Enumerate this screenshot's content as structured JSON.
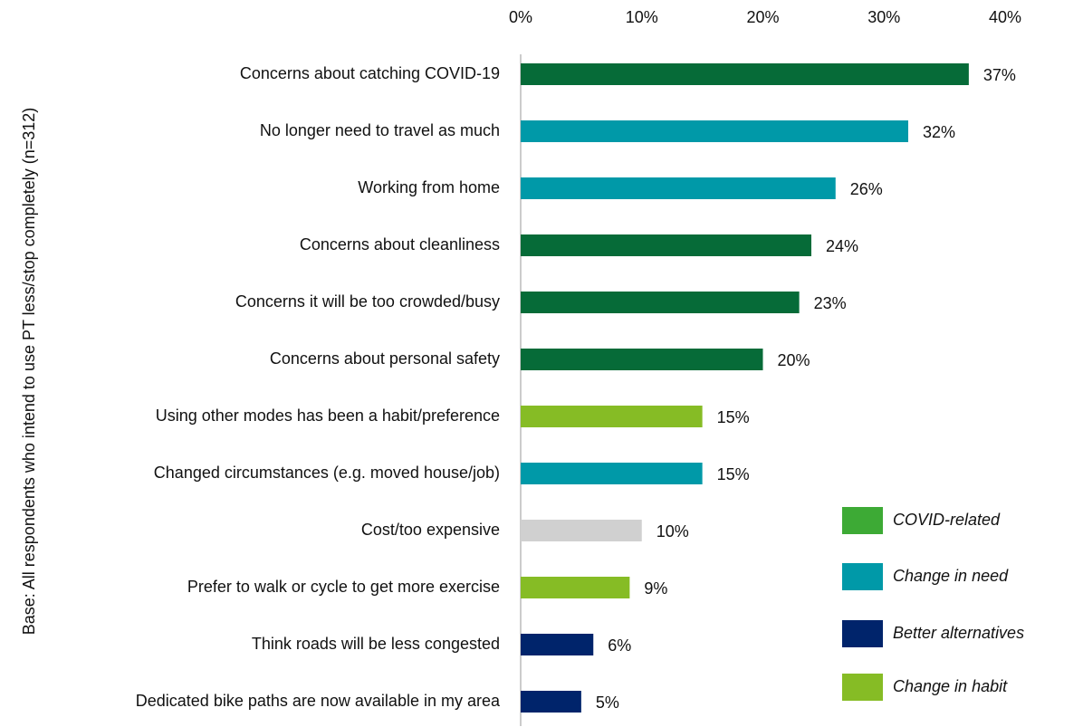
{
  "chart_data": {
    "type": "bar",
    "orientation": "horizontal",
    "y_label": "Base: All respondents who intend to use PT less/stop completely (n=312)",
    "categories": [
      "Concerns about catching COVID-19",
      "No longer need to travel as much",
      "Working from home",
      "Concerns about cleanliness",
      "Concerns it will be too crowded/busy",
      "Concerns about personal safety",
      "Using other modes has been a habit/preference",
      "Changed circumstances (e.g. moved house/job)",
      "Cost/too expensive",
      "Prefer to walk or cycle to get more exercise",
      "Think roads will be less congested",
      "Dedicated bike paths are now available in my area"
    ],
    "values": [
      37,
      32,
      26,
      24,
      23,
      20,
      15,
      15,
      10,
      9,
      6,
      5
    ],
    "value_labels": [
      "37%",
      "32%",
      "26%",
      "24%",
      "23%",
      "20%",
      "15%",
      "15%",
      "10%",
      "9%",
      "6%",
      "5%"
    ],
    "colors": [
      "#066b38",
      "#0099a8",
      "#0099a8",
      "#066b38",
      "#066b38",
      "#066b38",
      "#86bc25",
      "#0099a8",
      "#d0d0d0",
      "#86bc25",
      "#00246b",
      "#00246b"
    ],
    "xlim": [
      0,
      40
    ],
    "xticks": [
      {
        "value": 0,
        "label": "0%"
      },
      {
        "value": 10,
        "label": "10%"
      },
      {
        "value": 20,
        "label": "20%"
      },
      {
        "value": 30,
        "label": "30%"
      },
      {
        "value": 40,
        "label": "40%"
      }
    ],
    "legend": [
      {
        "name": "COVID-related",
        "color": "#3daa35"
      },
      {
        "name": "Change in need",
        "color": "#0099a8"
      },
      {
        "name": "Better alternatives",
        "color": "#00246b"
      },
      {
        "name": "Change in habit",
        "color": "#86bc25"
      }
    ],
    "legend_position": "lower right"
  }
}
